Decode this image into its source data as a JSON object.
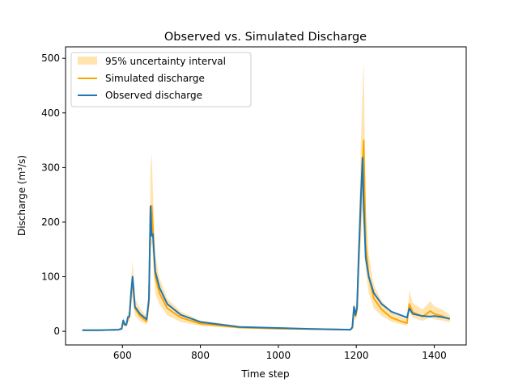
{
  "chart_data": {
    "type": "line",
    "title": "Observed vs. Simulated Discharge",
    "xlabel": "Time step",
    "ylabel": "Discharge (m³/s)",
    "xlim": [
      454,
      1482
    ],
    "ylim": [
      -25,
      521
    ],
    "xticks": [
      600,
      800,
      1000,
      1200,
      1400
    ],
    "yticks": [
      0,
      100,
      200,
      300,
      400,
      500
    ],
    "grid": false,
    "legend_placement": "upper-left",
    "legend": [
      "95% uncertainty interval",
      "Simulated discharge",
      "Observed discharge"
    ],
    "colors": {
      "band": "#ffe4b0",
      "simulated": "#ffa500",
      "observed": "#1f77b4"
    },
    "x": [
      497,
      540,
      590,
      598,
      602,
      606,
      610,
      614,
      618,
      622,
      626,
      632,
      645,
      662,
      668,
      672,
      675,
      678,
      684,
      695,
      715,
      750,
      800,
      900,
      1000,
      1100,
      1185,
      1190,
      1194,
      1198,
      1202,
      1206,
      1212,
      1216,
      1219,
      1224,
      1232,
      1245,
      1265,
      1290,
      1320,
      1330,
      1336,
      1345,
      1370,
      1390,
      1400,
      1420,
      1440
    ],
    "series": [
      {
        "name": "Observed discharge",
        "values": [
          2,
          2,
          3,
          5,
          20,
          12,
          12,
          26,
          28,
          70,
          100,
          45,
          32,
          22,
          60,
          229,
          175,
          178,
          110,
          80,
          50,
          30,
          17,
          8,
          6,
          4,
          3,
          8,
          45,
          30,
          45,
          135,
          250,
          318,
          230,
          135,
          100,
          70,
          50,
          36,
          28,
          25,
          42,
          32,
          28,
          27,
          28,
          26,
          23
        ]
      },
      {
        "name": "Simulated discharge",
        "values": [
          2,
          2,
          3,
          4,
          18,
          12,
          12,
          24,
          26,
          65,
          95,
          42,
          28,
          18,
          55,
          225,
          230,
          190,
          100,
          70,
          42,
          25,
          14,
          7,
          5,
          4,
          3,
          6,
          40,
          28,
          40,
          125,
          240,
          300,
          350,
          160,
          100,
          60,
          40,
          25,
          17,
          15,
          50,
          35,
          27,
          37,
          32,
          28,
          22
        ]
      }
    ],
    "band": {
      "name": "95% uncertainty interval",
      "upper": [
        3,
        3,
        4,
        6,
        26,
        17,
        17,
        34,
        37,
        92,
        130,
        60,
        42,
        28,
        80,
        300,
        326,
        260,
        140,
        98,
        60,
        36,
        20,
        10,
        7,
        6,
        4,
        9,
        55,
        40,
        56,
        180,
        350,
        440,
        496,
        230,
        140,
        85,
        56,
        36,
        25,
        22,
        75,
        52,
        40,
        55,
        46,
        40,
        30
      ],
      "lower": [
        1,
        1,
        2,
        3,
        13,
        8,
        8,
        17,
        18,
        45,
        65,
        29,
        19,
        12,
        38,
        158,
        160,
        133,
        70,
        49,
        29,
        17,
        10,
        5,
        3,
        3,
        2,
        4,
        28,
        20,
        28,
        88,
        168,
        210,
        245,
        112,
        70,
        42,
        28,
        18,
        12,
        11,
        35,
        25,
        19,
        26,
        22,
        20,
        16
      ]
    }
  }
}
